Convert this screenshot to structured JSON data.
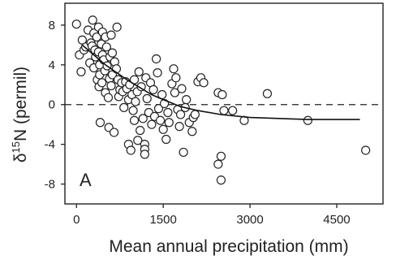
{
  "chart_data": {
    "type": "scatter",
    "panel_label": "A",
    "xlabel": "Mean annual precipitation (mm)",
    "ylabel_prefix": "δ",
    "ylabel_sup": "15",
    "ylabel_main": "N (permil)",
    "xlim": [
      -200,
      5300
    ],
    "ylim": [
      -10,
      10.2
    ],
    "x_ticks": [
      0,
      1500,
      3000,
      4500
    ],
    "x_tick_labels": [
      "0",
      "1500",
      "3000",
      "4500"
    ],
    "y_ticks": [
      8,
      4,
      0,
      -4,
      -8
    ],
    "y_tick_labels": [
      "8",
      "4",
      "0",
      "-4",
      "-8"
    ],
    "reference_line_y": 0,
    "fit_curve": {
      "x": [
        100,
        300,
        500,
        700,
        900,
        1100,
        1300,
        1500,
        1800,
        2100,
        2500,
        3000,
        3500,
        4000,
        4500,
        4900
      ],
      "y": [
        6.0,
        5.0,
        4.0,
        3.2,
        2.4,
        1.7,
        1.0,
        0.5,
        -0.2,
        -0.6,
        -1.0,
        -1.3,
        -1.4,
        -1.5,
        -1.5,
        -1.5
      ]
    },
    "points": [
      {
        "x": 0,
        "y": 8.1
      },
      {
        "x": 50,
        "y": 5.0
      },
      {
        "x": 80,
        "y": 3.3
      },
      {
        "x": 100,
        "y": 6.5
      },
      {
        "x": 130,
        "y": 5.5
      },
      {
        "x": 160,
        "y": 5.8
      },
      {
        "x": 200,
        "y": 7.5
      },
      {
        "x": 230,
        "y": 4.2
      },
      {
        "x": 250,
        "y": 6.2
      },
      {
        "x": 270,
        "y": 5.9
      },
      {
        "x": 280,
        "y": 8.5
      },
      {
        "x": 300,
        "y": 7.2
      },
      {
        "x": 300,
        "y": 3.7
      },
      {
        "x": 320,
        "y": 5.5
      },
      {
        "x": 330,
        "y": 4.8
      },
      {
        "x": 350,
        "y": 6.8
      },
      {
        "x": 360,
        "y": 2.5
      },
      {
        "x": 380,
        "y": 7.8
      },
      {
        "x": 380,
        "y": 5.3
      },
      {
        "x": 390,
        "y": 1.8
      },
      {
        "x": 400,
        "y": 3.0
      },
      {
        "x": 400,
        "y": 4.0
      },
      {
        "x": 410,
        "y": -1.8
      },
      {
        "x": 430,
        "y": 6.1
      },
      {
        "x": 440,
        "y": 2.2
      },
      {
        "x": 450,
        "y": 7.3
      },
      {
        "x": 450,
        "y": 5.0
      },
      {
        "x": 470,
        "y": 4.5
      },
      {
        "x": 490,
        "y": 3.4
      },
      {
        "x": 500,
        "y": 6.8
      },
      {
        "x": 500,
        "y": 1.2
      },
      {
        "x": 520,
        "y": 5.8
      },
      {
        "x": 530,
        "y": 3.9
      },
      {
        "x": 550,
        "y": 0.7
      },
      {
        "x": 560,
        "y": -2.3
      },
      {
        "x": 570,
        "y": 2.6
      },
      {
        "x": 580,
        "y": 4.8
      },
      {
        "x": 600,
        "y": 7.0
      },
      {
        "x": 600,
        "y": 1.9
      },
      {
        "x": 620,
        "y": 5.2
      },
      {
        "x": 620,
        "y": 3.0
      },
      {
        "x": 650,
        "y": -2.8
      },
      {
        "x": 660,
        "y": 4.3
      },
      {
        "x": 690,
        "y": 3.6
      },
      {
        "x": 700,
        "y": 7.8
      },
      {
        "x": 720,
        "y": 2.5
      },
      {
        "x": 730,
        "y": 0.8
      },
      {
        "x": 750,
        "y": 1.5
      },
      {
        "x": 780,
        "y": 2.2
      },
      {
        "x": 800,
        "y": 1.3
      },
      {
        "x": 820,
        "y": -0.3
      },
      {
        "x": 850,
        "y": 2.3
      },
      {
        "x": 870,
        "y": 1.6
      },
      {
        "x": 900,
        "y": 0.5
      },
      {
        "x": 900,
        "y": -4.0
      },
      {
        "x": 920,
        "y": 2.0
      },
      {
        "x": 940,
        "y": -4.6
      },
      {
        "x": 960,
        "y": 1.0
      },
      {
        "x": 980,
        "y": -0.6
      },
      {
        "x": 1000,
        "y": 2.5
      },
      {
        "x": 1000,
        "y": -1.6
      },
      {
        "x": 1020,
        "y": 0.3
      },
      {
        "x": 1050,
        "y": 1.3
      },
      {
        "x": 1060,
        "y": -3.6
      },
      {
        "x": 1080,
        "y": 3.3
      },
      {
        "x": 1100,
        "y": -2.6
      },
      {
        "x": 1120,
        "y": 1.8
      },
      {
        "x": 1150,
        "y": -1.4
      },
      {
        "x": 1180,
        "y": -4.0
      },
      {
        "x": 1180,
        "y": -4.5
      },
      {
        "x": 1180,
        "y": -5.0
      },
      {
        "x": 1200,
        "y": 2.7
      },
      {
        "x": 1220,
        "y": 0.6
      },
      {
        "x": 1250,
        "y": -0.8
      },
      {
        "x": 1280,
        "y": 2.2
      },
      {
        "x": 1300,
        "y": -2.0
      },
      {
        "x": 1330,
        "y": 1.5
      },
      {
        "x": 1350,
        "y": -1.2
      },
      {
        "x": 1380,
        "y": 4.6
      },
      {
        "x": 1400,
        "y": 3.2
      },
      {
        "x": 1420,
        "y": -0.4
      },
      {
        "x": 1450,
        "y": -1.6
      },
      {
        "x": 1480,
        "y": 1.0
      },
      {
        "x": 1500,
        "y": -2.5
      },
      {
        "x": 1520,
        "y": 0.1
      },
      {
        "x": 1550,
        "y": -3.5
      },
      {
        "x": 1580,
        "y": -0.8
      },
      {
        "x": 1600,
        "y": -1.8
      },
      {
        "x": 1650,
        "y": 2.1
      },
      {
        "x": 1680,
        "y": 3.6
      },
      {
        "x": 1700,
        "y": 1.2
      },
      {
        "x": 1720,
        "y": 2.7
      },
      {
        "x": 1750,
        "y": -0.5
      },
      {
        "x": 1780,
        "y": -2.2
      },
      {
        "x": 1800,
        "y": -1.0
      },
      {
        "x": 1820,
        "y": 1.6
      },
      {
        "x": 1850,
        "y": -4.8
      },
      {
        "x": 1880,
        "y": -0.3
      },
      {
        "x": 1900,
        "y": 0.5
      },
      {
        "x": 1950,
        "y": -1.8
      },
      {
        "x": 2000,
        "y": -2.7
      },
      {
        "x": 2020,
        "y": -1.3
      },
      {
        "x": 2050,
        "y": -1.0
      },
      {
        "x": 2100,
        "y": 2.3
      },
      {
        "x": 2150,
        "y": 2.7
      },
      {
        "x": 2200,
        "y": 2.2
      },
      {
        "x": 2450,
        "y": 1.2
      },
      {
        "x": 2450,
        "y": -6.0
      },
      {
        "x": 2500,
        "y": -5.2
      },
      {
        "x": 2500,
        "y": -7.6
      },
      {
        "x": 2520,
        "y": 1.0
      },
      {
        "x": 2550,
        "y": -0.6
      },
      {
        "x": 2700,
        "y": -0.6
      },
      {
        "x": 2900,
        "y": -1.6
      },
      {
        "x": 3300,
        "y": 1.1
      },
      {
        "x": 4000,
        "y": -1.6
      },
      {
        "x": 5000,
        "y": -4.6
      }
    ]
  }
}
